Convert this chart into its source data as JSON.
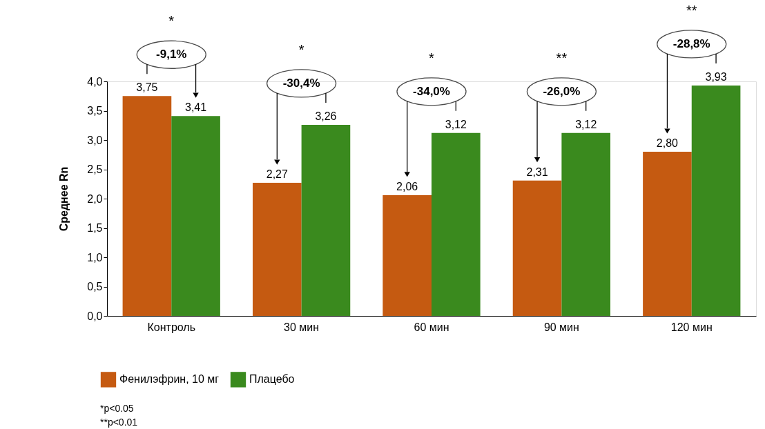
{
  "chart_data": {
    "type": "bar",
    "ylabel": "Среднее Rn",
    "categories": [
      "Контроль",
      "30 мин",
      "60 мин",
      "90 мин",
      "120 мин"
    ],
    "series": [
      {
        "name": "Фенилэфрин, 10 мг",
        "color": "#c55a11",
        "values": [
          3.75,
          2.27,
          2.06,
          2.31,
          2.8
        ],
        "value_labels": [
          "3,75",
          "2,27",
          "2,06",
          "2,31",
          "2,80"
        ]
      },
      {
        "name": "Плацебо",
        "color": "#3a8a1e",
        "values": [
          3.41,
          3.26,
          3.12,
          3.12,
          3.93
        ],
        "value_labels": [
          "3,41",
          "3,26",
          "3,12",
          "3,12",
          "3,93"
        ]
      }
    ],
    "ylim": [
      0,
      4
    ],
    "yticks": [
      {
        "value": 0,
        "label": "0,0"
      },
      {
        "value": 0.5,
        "label": "0,5"
      },
      {
        "value": 1,
        "label": "1,0"
      },
      {
        "value": 1.5,
        "label": "1,5"
      },
      {
        "value": 2,
        "label": "2,0"
      },
      {
        "value": 2.5,
        "label": "2,5"
      },
      {
        "value": 3,
        "label": "3,0"
      },
      {
        "value": 3.5,
        "label": "3,5"
      },
      {
        "value": 4,
        "label": "4,0"
      }
    ],
    "grid": false,
    "legend": "bottom",
    "annotations": [
      "*",
      "-9,1%",
      "*",
      "-30,4%",
      "*",
      "-34,0%",
      "**",
      "-26,0%",
      "**",
      "-28,8%",
      "*p<0.05",
      "**p<0.01"
    ]
  }
}
